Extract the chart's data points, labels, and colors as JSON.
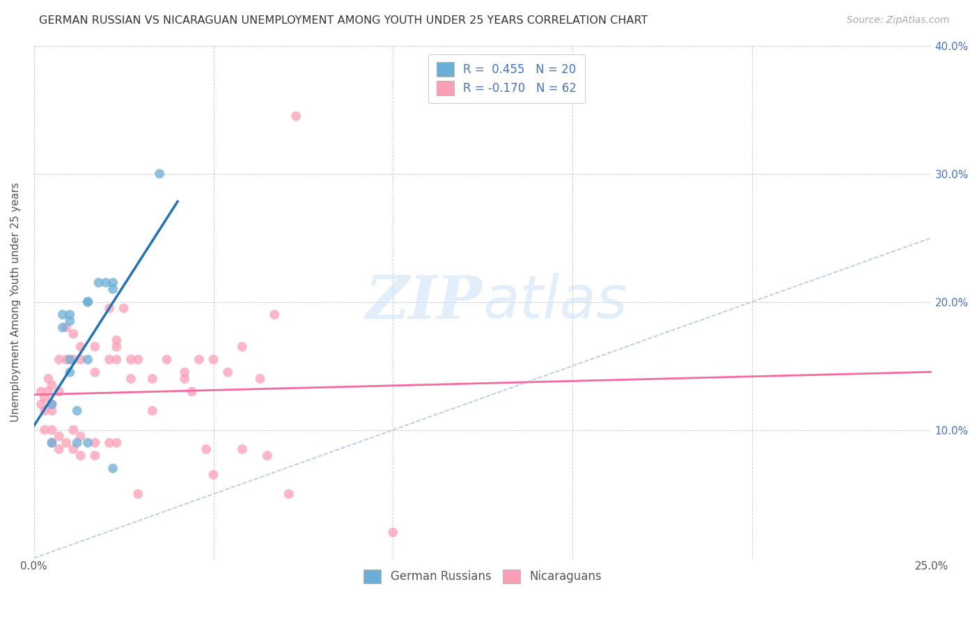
{
  "title": "GERMAN RUSSIAN VS NICARAGUAN UNEMPLOYMENT AMONG YOUTH UNDER 25 YEARS CORRELATION CHART",
  "source": "Source: ZipAtlas.com",
  "ylabel": "Unemployment Among Youth under 25 years",
  "x_min": 0.0,
  "x_max": 0.25,
  "y_min": 0.0,
  "y_max": 0.4,
  "x_ticks": [
    0.0,
    0.25
  ],
  "x_tick_labels": [
    "0.0%",
    "25.0%"
  ],
  "x_grid_ticks": [
    0.0,
    0.05,
    0.1,
    0.15,
    0.2,
    0.25
  ],
  "y_ticks": [
    0.0,
    0.1,
    0.2,
    0.3,
    0.4
  ],
  "y_tick_labels_right": [
    "",
    "10.0%",
    "20.0%",
    "30.0%",
    "40.0%"
  ],
  "legend_line1": "R =  0.455   N = 20",
  "legend_line2": "R = -0.170   N = 62",
  "german_russian_color": "#6baed6",
  "nicaraguan_color": "#fa9fb5",
  "german_russian_trendline_color": "#2171b5",
  "nicaraguan_trendline_color": "#f768a1",
  "diagonal_line_color": "#aec8e8",
  "watermark_zip": "ZIP",
  "watermark_atlas": "atlas",
  "legend_bottom_gr": "German Russians",
  "legend_bottom_nic": "Nicaraguans",
  "german_russian_x": [
    0.005,
    0.005,
    0.008,
    0.008,
    0.01,
    0.01,
    0.01,
    0.01,
    0.012,
    0.012,
    0.015,
    0.015,
    0.015,
    0.015,
    0.018,
    0.02,
    0.022,
    0.022,
    0.022,
    0.035
  ],
  "german_russian_y": [
    0.12,
    0.09,
    0.18,
    0.19,
    0.19,
    0.185,
    0.155,
    0.145,
    0.115,
    0.09,
    0.2,
    0.2,
    0.155,
    0.09,
    0.215,
    0.215,
    0.215,
    0.21,
    0.07,
    0.3
  ],
  "nicaraguan_x": [
    0.002,
    0.002,
    0.003,
    0.003,
    0.003,
    0.004,
    0.004,
    0.005,
    0.005,
    0.005,
    0.005,
    0.005,
    0.007,
    0.007,
    0.007,
    0.007,
    0.009,
    0.009,
    0.009,
    0.011,
    0.011,
    0.011,
    0.011,
    0.013,
    0.013,
    0.013,
    0.013,
    0.017,
    0.017,
    0.017,
    0.017,
    0.021,
    0.021,
    0.021,
    0.023,
    0.023,
    0.023,
    0.023,
    0.025,
    0.027,
    0.027,
    0.029,
    0.029,
    0.033,
    0.033,
    0.037,
    0.042,
    0.042,
    0.044,
    0.046,
    0.048,
    0.05,
    0.05,
    0.054,
    0.058,
    0.058,
    0.063,
    0.065,
    0.067,
    0.071,
    0.073,
    0.1
  ],
  "nicaraguan_y": [
    0.13,
    0.12,
    0.125,
    0.115,
    0.1,
    0.14,
    0.13,
    0.135,
    0.12,
    0.115,
    0.1,
    0.09,
    0.155,
    0.13,
    0.095,
    0.085,
    0.18,
    0.155,
    0.09,
    0.175,
    0.155,
    0.1,
    0.085,
    0.165,
    0.155,
    0.095,
    0.08,
    0.165,
    0.145,
    0.09,
    0.08,
    0.195,
    0.155,
    0.09,
    0.17,
    0.165,
    0.155,
    0.09,
    0.195,
    0.155,
    0.14,
    0.155,
    0.05,
    0.14,
    0.115,
    0.155,
    0.145,
    0.14,
    0.13,
    0.155,
    0.085,
    0.155,
    0.065,
    0.145,
    0.165,
    0.085,
    0.14,
    0.08,
    0.19,
    0.05,
    0.345,
    0.02
  ]
}
